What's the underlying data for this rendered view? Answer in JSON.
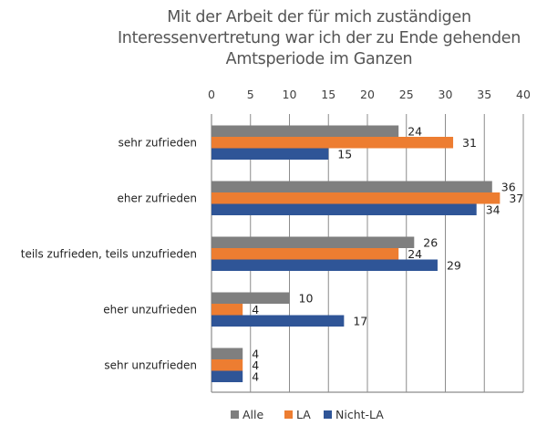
{
  "chart_data": {
    "type": "bar",
    "orientation": "horizontal",
    "title": "Mit der Arbeit der für mich zuständigen Interessenvertretung war ich der zu Ende gehenden Amtsperiode im Ganzen",
    "title_lines": [
      "Mit der Arbeit der für mich zuständigen",
      "Interessenvertretung war ich der zu Ende gehenden",
      "Amtsperiode im Ganzen"
    ],
    "categories": [
      "sehr zufrieden",
      "eher zufrieden",
      "teils zufrieden, teils unzufrieden",
      "eher unzufrieden",
      "sehr unzufrieden"
    ],
    "series": [
      {
        "name": "Alle",
        "color": "#7f7f7f",
        "values": [
          24,
          36,
          26,
          10,
          4
        ],
        "labels": [
          "24",
          "36",
          "26",
          "10",
          "4"
        ]
      },
      {
        "name": "LA",
        "color": "#ed7d31",
        "values": [
          31,
          37,
          24,
          4,
          4
        ],
        "labels": [
          "31",
          "37",
          "24",
          "4",
          "4"
        ]
      },
      {
        "name": "Nicht-LA",
        "color": "#2f5597",
        "values": [
          15,
          34,
          29,
          17,
          4
        ],
        "labels": [
          "15",
          "34",
          "29",
          "17",
          "4"
        ]
      }
    ],
    "xlim": [
      0,
      40
    ],
    "xticks": [
      0,
      5,
      10,
      15,
      20,
      25,
      30,
      35,
      40
    ],
    "xtick_labels": [
      "0",
      "5",
      "10",
      "15",
      "20",
      "25",
      "30",
      "35",
      "40"
    ],
    "xaxis_position": "top",
    "xlabel": "",
    "ylabel": "",
    "grid": true,
    "legend_position": "bottom"
  }
}
